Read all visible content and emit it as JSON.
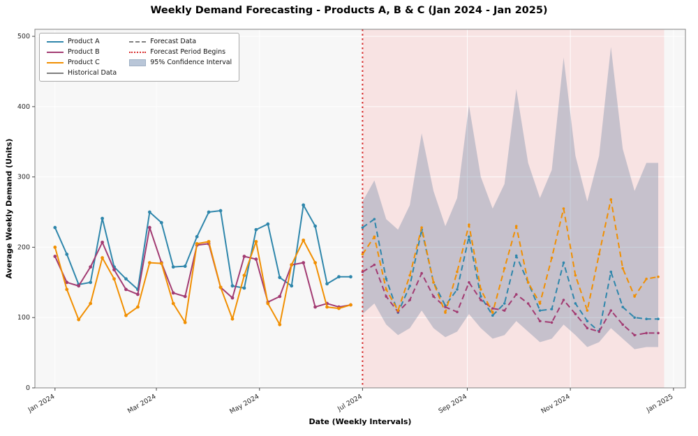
{
  "chart_data": {
    "type": "line",
    "title": "Weekly Demand Forecasting - Products A, B & C (Jan 2024 - Jan 2025)",
    "xlabel": "Date (Weekly Intervals)",
    "ylabel": "Average Weekly Demand (Units)",
    "xlim_weeks": [
      -1.7,
      53.3
    ],
    "ylim": [
      0,
      510
    ],
    "y_ticks": [
      0,
      100,
      200,
      300,
      400,
      500
    ],
    "x_ticks": [
      {
        "week": 0,
        "label": "Jan 2024"
      },
      {
        "week": 8.57,
        "label": "Mar 2024"
      },
      {
        "week": 17.29,
        "label": "May 2024"
      },
      {
        "week": 26,
        "label": "Jul 2024"
      },
      {
        "week": 34.86,
        "label": "Sep 2024"
      },
      {
        "week": 43.57,
        "label": "Nov 2024"
      },
      {
        "week": 52.29,
        "label": "Jan 2025"
      }
    ],
    "grid": true,
    "legend_position": "upper-left",
    "historical_start_week": 0,
    "forecast_start_week": 26,
    "forecast_region_weeks": [
      26,
      51.5
    ],
    "series": [
      {
        "name": "Product A",
        "color": "#2E86AB",
        "historical": [
          228,
          190,
          147,
          150,
          241,
          172,
          155,
          140,
          250,
          235,
          172,
          173,
          215,
          250,
          252,
          145,
          142,
          225,
          233,
          157,
          145,
          260,
          230,
          148,
          158,
          158
        ],
        "forecast": [
          228,
          240,
          155,
          107,
          145,
          225,
          150,
          117,
          140,
          215,
          130,
          103,
          120,
          188,
          150,
          110,
          112,
          178,
          120,
          95,
          80,
          165,
          115,
          100,
          98,
          98
        ]
      },
      {
        "name": "Product B",
        "color": "#A23B72",
        "historical": [
          187,
          150,
          145,
          172,
          207,
          168,
          140,
          133,
          228,
          178,
          135,
          130,
          203,
          205,
          143,
          128,
          187,
          183,
          122,
          130,
          175,
          178,
          115,
          120,
          115,
          118
        ],
        "forecast": [
          165,
          175,
          130,
          108,
          125,
          163,
          130,
          115,
          108,
          150,
          125,
          113,
          110,
          133,
          120,
          95,
          93,
          125,
          105,
          85,
          80,
          110,
          90,
          75,
          78,
          78
        ]
      },
      {
        "name": "Product C",
        "color": "#F18F01",
        "historical": [
          200,
          140,
          97,
          120,
          185,
          155,
          103,
          115,
          178,
          177,
          120,
          93,
          205,
          208,
          143,
          98,
          160,
          208,
          120,
          90,
          175,
          210,
          178,
          115,
          113,
          118
        ],
        "forecast": [
          190,
          215,
          140,
          110,
          160,
          228,
          150,
          107,
          165,
          232,
          140,
          107,
          170,
          230,
          150,
          120,
          185,
          255,
          160,
          110,
          190,
          268,
          170,
          130,
          155,
          158
        ]
      }
    ],
    "confidence_interval": {
      "start_week": 26,
      "upper": [
        265,
        295,
        240,
        225,
        260,
        362,
        280,
        230,
        270,
        402,
        300,
        255,
        290,
        425,
        320,
        270,
        310,
        470,
        330,
        265,
        330,
        485,
        340,
        280,
        320,
        320
      ],
      "lower": [
        105,
        120,
        90,
        75,
        85,
        110,
        85,
        72,
        80,
        105,
        85,
        70,
        75,
        95,
        80,
        65,
        70,
        90,
        75,
        58,
        65,
        85,
        70,
        55,
        58,
        58
      ]
    },
    "legend": [
      {
        "label": "Product A",
        "style": "solid",
        "color": "#2E86AB"
      },
      {
        "label": "Product B",
        "style": "solid",
        "color": "#A23B72"
      },
      {
        "label": "Product C",
        "style": "solid",
        "color": "#F18F01"
      },
      {
        "label": "Historical Data",
        "style": "solid",
        "color": "#7f7f7f"
      },
      {
        "label": "Forecast Data",
        "style": "dashed",
        "color": "#7f7f7f"
      },
      {
        "label": "Forecast Period Begins",
        "style": "dotted",
        "color": "#D62828"
      },
      {
        "label": "95% Confidence Interval",
        "style": "patch",
        "color": "#b9c6d8"
      }
    ],
    "colors": {
      "plot_bg": "#f7f7f7",
      "forecast_bg": "rgba(255,160,160,0.22)",
      "ci_fill": "rgba(106,130,160,0.35)",
      "forecast_begin_line": "#D62828",
      "grid": "#ffffff",
      "axis": "#808080",
      "tick": "#444444"
    }
  }
}
